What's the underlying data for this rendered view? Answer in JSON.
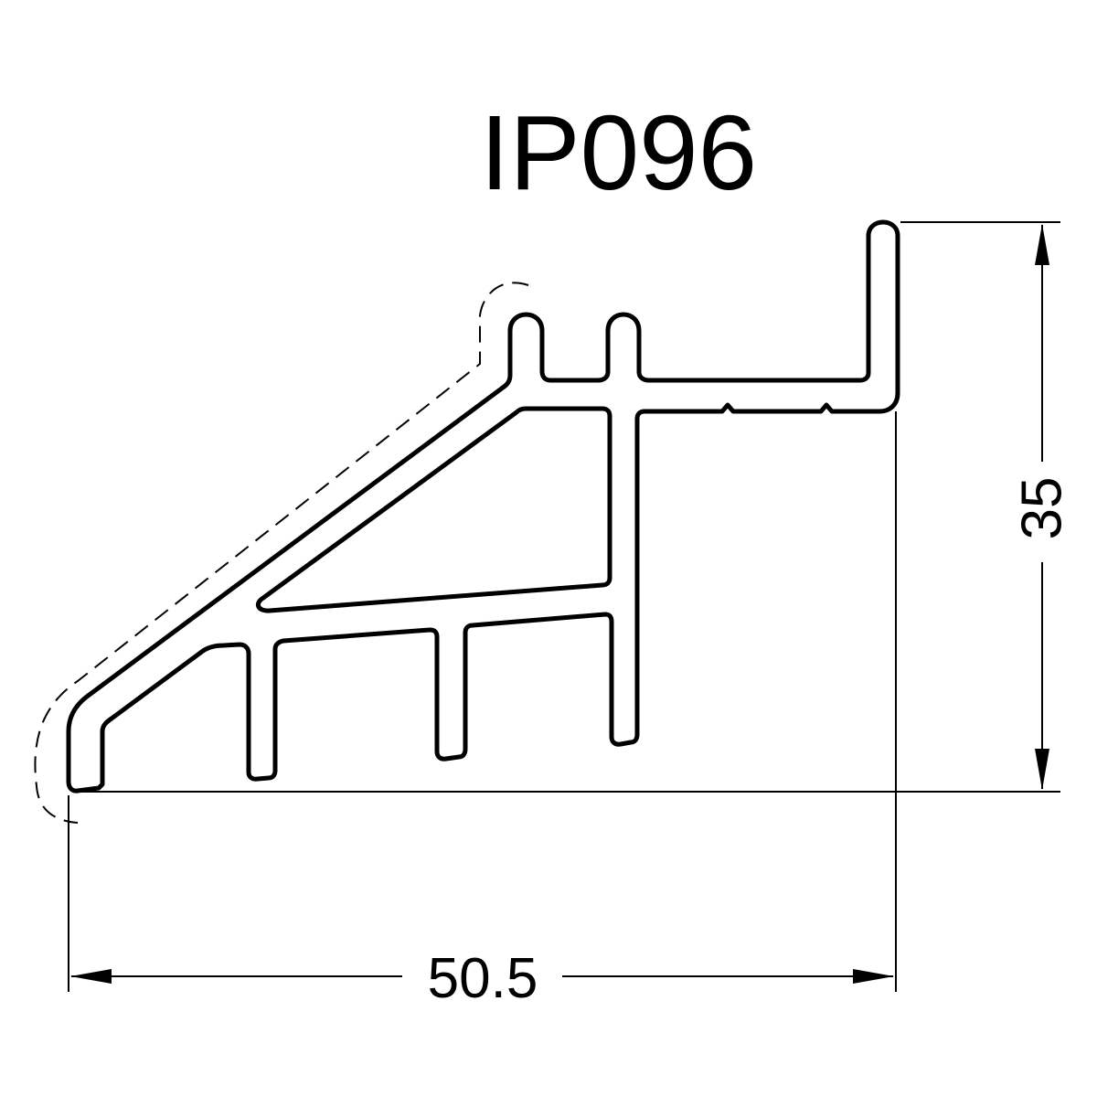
{
  "drawing": {
    "title": "IP096",
    "dimensions": {
      "width_label": "50.5",
      "height_label": "35"
    },
    "colors": {
      "line": "#000000",
      "background": "#ffffff"
    }
  }
}
